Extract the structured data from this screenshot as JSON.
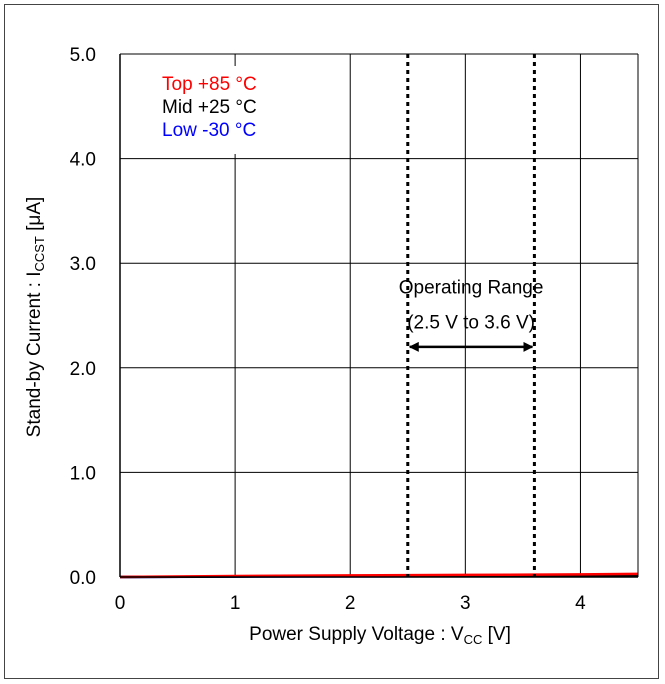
{
  "chart_data": {
    "type": "line",
    "title": "",
    "xlabel": "Power Supply Voltage : V",
    "xlabel_sub": "CC",
    "xlabel_suffix": " [V]",
    "ylabel": "Stand-by Current : I",
    "ylabel_sub": "CCST",
    "ylabel_suffix": " [μA]",
    "xlim": [
      0,
      4.5
    ],
    "ylim": [
      0,
      5.0
    ],
    "x_ticks": [
      0,
      1,
      2,
      3,
      4
    ],
    "x_tick_labels": [
      "0",
      "1",
      "2",
      "3",
      "4"
    ],
    "y_ticks": [
      0,
      1,
      2,
      3,
      4,
      5
    ],
    "y_tick_labels": [
      "0.0",
      "1.0",
      "2.0",
      "3.0",
      "4.0",
      "5.0"
    ],
    "grid": true,
    "legend_position": "top-left",
    "series": [
      {
        "name": "Top +85 °C",
        "color": "#ff0000",
        "x": [
          0,
          1,
          2,
          3,
          4,
          4.5
        ],
        "y": [
          0.0,
          0.01,
          0.015,
          0.02,
          0.025,
          0.03
        ]
      },
      {
        "name": "Mid +25 °C",
        "color": "#000000",
        "x": [
          0,
          1,
          2,
          3,
          4,
          4.5
        ],
        "y": [
          0.0,
          0.005,
          0.008,
          0.01,
          0.012,
          0.014
        ]
      },
      {
        "name": "Low -30 °C",
        "color": "#0000ff",
        "x": [
          0,
          1,
          2,
          3,
          4,
          4.5
        ],
        "y": [
          0.0,
          0.004,
          0.006,
          0.008,
          0.01,
          0.012
        ]
      }
    ],
    "vlines": [
      2.5,
      3.6
    ],
    "annotation": {
      "line1": "Operating Range",
      "line2": "(2.5 V to 3.6 V)",
      "x_from": 2.5,
      "x_to": 3.6,
      "y_arrow": 2.2,
      "y_line1": 2.75,
      "y_line2": 2.45
    }
  }
}
